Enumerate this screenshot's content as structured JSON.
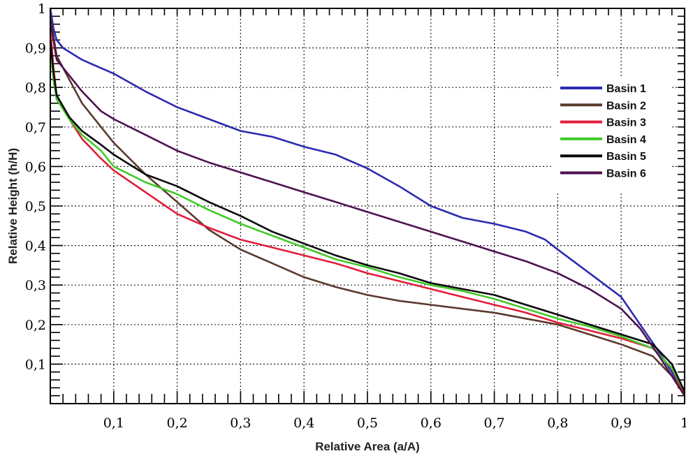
{
  "chart_data": {
    "type": "line",
    "title": "",
    "xlabel": "Relative Area (a/A)",
    "ylabel": "Relative Height (h/H)",
    "xlim": [
      0,
      1
    ],
    "ylim": [
      0,
      1
    ],
    "grid": true,
    "legend_position": "right",
    "x_ticks": [
      {
        "value": 0.1,
        "label": "0,1"
      },
      {
        "value": 0.2,
        "label": "0,2"
      },
      {
        "value": 0.3,
        "label": "0,3"
      },
      {
        "value": 0.4,
        "label": "0,4"
      },
      {
        "value": 0.5,
        "label": "0,5"
      },
      {
        "value": 0.6,
        "label": "0,6"
      },
      {
        "value": 0.7,
        "label": "0,7"
      },
      {
        "value": 0.8,
        "label": "0,8"
      },
      {
        "value": 0.9,
        "label": "0,9"
      },
      {
        "value": 1.0,
        "label": "1"
      }
    ],
    "y_ticks": [
      {
        "value": 0.1,
        "label": "0,1"
      },
      {
        "value": 0.2,
        "label": "0,2"
      },
      {
        "value": 0.3,
        "label": "0,3"
      },
      {
        "value": 0.4,
        "label": "0,4"
      },
      {
        "value": 0.5,
        "label": "0,5"
      },
      {
        "value": 0.6,
        "label": "0,6"
      },
      {
        "value": 0.7,
        "label": "0,7"
      },
      {
        "value": 0.8,
        "label": "0,8"
      },
      {
        "value": 0.9,
        "label": "0,9"
      },
      {
        "value": 1.0,
        "label": "1"
      }
    ],
    "series": [
      {
        "name": "Basin 1",
        "color": "#2b2bb0",
        "points": [
          [
            0.0,
            1.0
          ],
          [
            0.005,
            0.95
          ],
          [
            0.01,
            0.92
          ],
          [
            0.02,
            0.9
          ],
          [
            0.05,
            0.87
          ],
          [
            0.1,
            0.835
          ],
          [
            0.15,
            0.79
          ],
          [
            0.2,
            0.75
          ],
          [
            0.25,
            0.72
          ],
          [
            0.3,
            0.69
          ],
          [
            0.35,
            0.675
          ],
          [
            0.4,
            0.65
          ],
          [
            0.45,
            0.63
          ],
          [
            0.5,
            0.595
          ],
          [
            0.55,
            0.55
          ],
          [
            0.6,
            0.5
          ],
          [
            0.65,
            0.47
          ],
          [
            0.7,
            0.455
          ],
          [
            0.75,
            0.435
          ],
          [
            0.78,
            0.415
          ],
          [
            0.8,
            0.39
          ],
          [
            0.85,
            0.33
          ],
          [
            0.9,
            0.27
          ],
          [
            0.93,
            0.2
          ],
          [
            0.96,
            0.13
          ],
          [
            0.98,
            0.08
          ],
          [
            1.0,
            0.02
          ]
        ]
      },
      {
        "name": "Basin 2",
        "color": "#5a3a2e",
        "points": [
          [
            0.0,
            0.98
          ],
          [
            0.005,
            0.93
          ],
          [
            0.01,
            0.88
          ],
          [
            0.03,
            0.82
          ],
          [
            0.05,
            0.76
          ],
          [
            0.08,
            0.7
          ],
          [
            0.1,
            0.66
          ],
          [
            0.15,
            0.58
          ],
          [
            0.2,
            0.51
          ],
          [
            0.25,
            0.44
          ],
          [
            0.3,
            0.39
          ],
          [
            0.35,
            0.355
          ],
          [
            0.4,
            0.32
          ],
          [
            0.45,
            0.295
          ],
          [
            0.5,
            0.275
          ],
          [
            0.55,
            0.26
          ],
          [
            0.6,
            0.25
          ],
          [
            0.65,
            0.24
          ],
          [
            0.7,
            0.23
          ],
          [
            0.75,
            0.215
          ],
          [
            0.8,
            0.2
          ],
          [
            0.85,
            0.175
          ],
          [
            0.9,
            0.15
          ],
          [
            0.95,
            0.12
          ],
          [
            0.98,
            0.07
          ],
          [
            1.0,
            0.02
          ]
        ]
      },
      {
        "name": "Basin 3",
        "color": "#e21d3a",
        "points": [
          [
            0.0,
            0.95
          ],
          [
            0.005,
            0.85
          ],
          [
            0.01,
            0.78
          ],
          [
            0.03,
            0.72
          ],
          [
            0.05,
            0.67
          ],
          [
            0.08,
            0.62
          ],
          [
            0.1,
            0.59
          ],
          [
            0.15,
            0.535
          ],
          [
            0.2,
            0.48
          ],
          [
            0.25,
            0.445
          ],
          [
            0.3,
            0.415
          ],
          [
            0.35,
            0.395
          ],
          [
            0.4,
            0.375
          ],
          [
            0.45,
            0.355
          ],
          [
            0.5,
            0.33
          ],
          [
            0.55,
            0.31
          ],
          [
            0.6,
            0.29
          ],
          [
            0.65,
            0.27
          ],
          [
            0.7,
            0.25
          ],
          [
            0.75,
            0.23
          ],
          [
            0.8,
            0.205
          ],
          [
            0.85,
            0.185
          ],
          [
            0.9,
            0.165
          ],
          [
            0.95,
            0.14
          ],
          [
            0.98,
            0.09
          ],
          [
            1.0,
            0.02
          ]
        ]
      },
      {
        "name": "Basin 4",
        "color": "#43c929",
        "points": [
          [
            0.0,
            0.9
          ],
          [
            0.005,
            0.82
          ],
          [
            0.01,
            0.77
          ],
          [
            0.03,
            0.72
          ],
          [
            0.05,
            0.68
          ],
          [
            0.08,
            0.64
          ],
          [
            0.1,
            0.6
          ],
          [
            0.15,
            0.56
          ],
          [
            0.2,
            0.53
          ],
          [
            0.25,
            0.49
          ],
          [
            0.3,
            0.455
          ],
          [
            0.35,
            0.425
          ],
          [
            0.4,
            0.395
          ],
          [
            0.45,
            0.365
          ],
          [
            0.5,
            0.345
          ],
          [
            0.55,
            0.32
          ],
          [
            0.6,
            0.3
          ],
          [
            0.65,
            0.285
          ],
          [
            0.7,
            0.265
          ],
          [
            0.75,
            0.24
          ],
          [
            0.8,
            0.215
          ],
          [
            0.85,
            0.195
          ],
          [
            0.9,
            0.17
          ],
          [
            0.95,
            0.14
          ],
          [
            0.98,
            0.09
          ],
          [
            1.0,
            0.03
          ]
        ]
      },
      {
        "name": "Basin 5",
        "color": "#0a0a0a",
        "points": [
          [
            0.0,
            0.92
          ],
          [
            0.005,
            0.84
          ],
          [
            0.01,
            0.78
          ],
          [
            0.03,
            0.725
          ],
          [
            0.05,
            0.69
          ],
          [
            0.08,
            0.655
          ],
          [
            0.1,
            0.63
          ],
          [
            0.15,
            0.58
          ],
          [
            0.2,
            0.55
          ],
          [
            0.25,
            0.51
          ],
          [
            0.3,
            0.475
          ],
          [
            0.35,
            0.435
          ],
          [
            0.4,
            0.405
          ],
          [
            0.45,
            0.375
          ],
          [
            0.5,
            0.35
          ],
          [
            0.55,
            0.33
          ],
          [
            0.6,
            0.305
          ],
          [
            0.65,
            0.29
          ],
          [
            0.7,
            0.275
          ],
          [
            0.75,
            0.25
          ],
          [
            0.8,
            0.225
          ],
          [
            0.85,
            0.2
          ],
          [
            0.9,
            0.175
          ],
          [
            0.95,
            0.15
          ],
          [
            0.98,
            0.1
          ],
          [
            1.0,
            0.03
          ]
        ]
      },
      {
        "name": "Basin 6",
        "color": "#4d1150",
        "points": [
          [
            0.0,
            0.97
          ],
          [
            0.005,
            0.92
          ],
          [
            0.01,
            0.87
          ],
          [
            0.03,
            0.83
          ],
          [
            0.05,
            0.79
          ],
          [
            0.08,
            0.74
          ],
          [
            0.1,
            0.72
          ],
          [
            0.15,
            0.68
          ],
          [
            0.2,
            0.64
          ],
          [
            0.25,
            0.61
          ],
          [
            0.3,
            0.585
          ],
          [
            0.35,
            0.56
          ],
          [
            0.4,
            0.535
          ],
          [
            0.45,
            0.51
          ],
          [
            0.5,
            0.485
          ],
          [
            0.55,
            0.46
          ],
          [
            0.6,
            0.435
          ],
          [
            0.65,
            0.41
          ],
          [
            0.7,
            0.385
          ],
          [
            0.75,
            0.36
          ],
          [
            0.8,
            0.33
          ],
          [
            0.85,
            0.29
          ],
          [
            0.9,
            0.24
          ],
          [
            0.93,
            0.19
          ],
          [
            0.96,
            0.12
          ],
          [
            0.98,
            0.07
          ],
          [
            1.0,
            0.02
          ]
        ]
      }
    ]
  }
}
